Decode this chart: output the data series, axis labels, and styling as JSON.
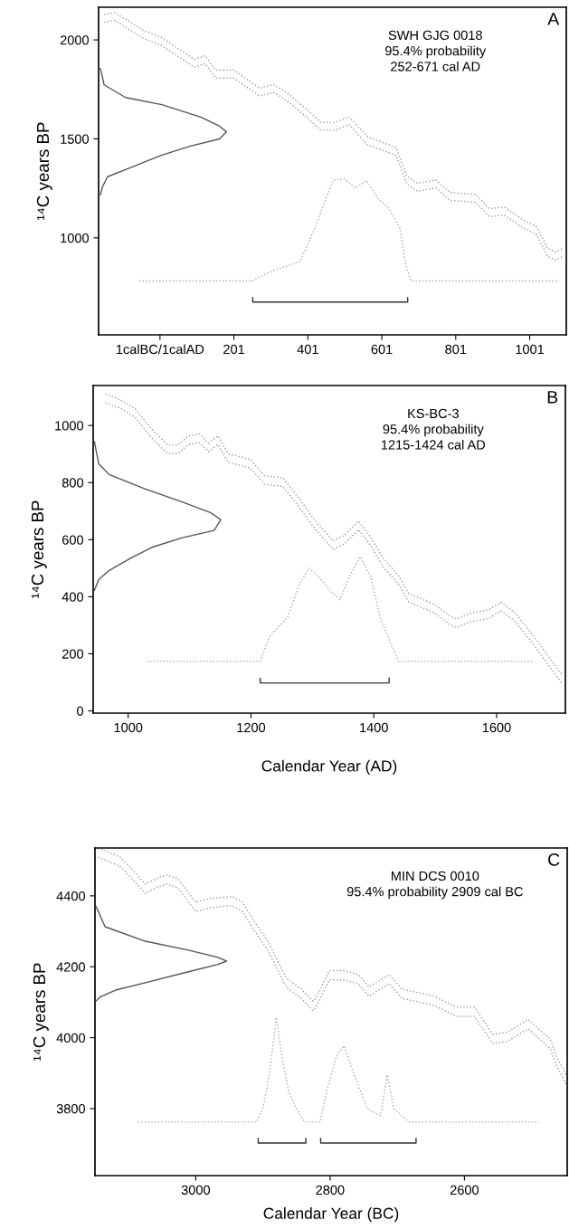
{
  "chart_data": [
    {
      "type": "line",
      "ylabel": "¹⁴C years BP",
      "annotations": [
        "A",
        "SWH GJG 0018\n95.4% probability\n252-671 cal AD"
      ],
      "xlim": [
        -165,
        1100
      ],
      "ylim": [
        510,
        2165
      ],
      "xticks": [
        {
          "value": 1,
          "label": "1calBC/1calAD"
        },
        201,
        401,
        601,
        801,
        1001
      ],
      "yticks": [
        1000,
        1500,
        2000
      ],
      "grid": false,
      "series": [
        {
          "color": "#9a9a9a",
          "line_style": "dotted",
          "x": [
            -150,
            -121,
            -43,
            6,
            94,
            123,
            152,
            201,
            270,
            308,
            347,
            405,
            435,
            474,
            513,
            562,
            640,
            669,
            698,
            747,
            786,
            854,
            893,
            932,
            981,
            1020,
            1049,
            1069,
            1093
          ],
          "values": [
            2129,
            2138,
            2047,
            2011,
            1902,
            1920,
            1847,
            1847,
            1756,
            1775,
            1729,
            1638,
            1584,
            1584,
            1611,
            1511,
            1456,
            1311,
            1275,
            1293,
            1229,
            1220,
            1147,
            1156,
            1093,
            1056,
            947,
            929,
            947
          ]
        },
        {
          "color": "#9a9a9a",
          "line_style": "dotted",
          "x": [
            -150,
            -121,
            -43,
            6,
            94,
            123,
            152,
            201,
            270,
            308,
            347,
            405,
            435,
            474,
            513,
            562,
            640,
            669,
            698,
            747,
            786,
            854,
            893,
            932,
            981,
            1020,
            1049,
            1069,
            1093
          ],
          "values": [
            2089,
            2098,
            2007,
            1971,
            1862,
            1880,
            1807,
            1807,
            1716,
            1735,
            1689,
            1598,
            1544,
            1544,
            1571,
            1471,
            1416,
            1271,
            1235,
            1253,
            1189,
            1180,
            1107,
            1116,
            1053,
            1016,
            907,
            889,
            907
          ]
        },
        {
          "color": "#555555",
          "line_style": "solid",
          "x": [
            -160,
            -150,
            -92,
            6,
            113,
            162,
            181,
            162,
            84,
            6,
            -92,
            -141,
            -155,
            -160
          ],
          "values": [
            1855,
            1773,
            1709,
            1673,
            1609,
            1564,
            1536,
            1500,
            1464,
            1418,
            1345,
            1309,
            1255,
            1218
          ]
        },
        {
          "color": "#a8a8a8",
          "line_style": "dotted",
          "x": [
            -55,
            250,
            300,
            380,
            420,
            450,
            470,
            500,
            530,
            560,
            590,
            620,
            650,
            665,
            680,
            1080
          ],
          "values": [
            782,
            782,
            830,
            880,
            1050,
            1200,
            1290,
            1300,
            1250,
            1290,
            1200,
            1150,
            1050,
            870,
            782,
            782
          ]
        },
        {
          "color": "#333333",
          "line_style": "solid",
          "x": [
            252,
            252,
            671,
            671
          ],
          "values": [
            698,
            676,
            676,
            698
          ]
        }
      ]
    },
    {
      "type": "line",
      "xlabel": "Calendar Year (AD)",
      "ylabel": "¹⁴C years BP",
      "annotations": [
        "B",
        "KS-BC-3\n95.4% probability\n1215-1424 cal AD"
      ],
      "xlim": [
        943,
        1712
      ],
      "ylim": [
        -8,
        1140
      ],
      "xticks": [
        1000,
        1200,
        1400,
        1600
      ],
      "yticks": [
        0,
        200,
        400,
        600,
        800,
        1000
      ],
      "grid": false,
      "series": [
        {
          "color": "#9a9a9a",
          "line_style": "dotted",
          "x": [
            963,
            987,
            1011,
            1040,
            1064,
            1081,
            1099,
            1116,
            1131,
            1146,
            1163,
            1199,
            1222,
            1252,
            1275,
            1305,
            1334,
            1352,
            1375,
            1393,
            1416,
            1440,
            1457,
            1499,
            1522,
            1534,
            1557,
            1587,
            1607,
            1628,
            1657,
            1687,
            1707
          ],
          "values": [
            1110,
            1091,
            1059,
            983,
            932,
            932,
            964,
            970,
            938,
            964,
            901,
            881,
            824,
            816,
            754,
            665,
            596,
            615,
            665,
            615,
            532,
            475,
            411,
            373,
            335,
            322,
            342,
            354,
            380,
            348,
            272,
            183,
            125
          ]
        },
        {
          "color": "#9a9a9a",
          "line_style": "dotted",
          "x": [
            963,
            987,
            1011,
            1040,
            1064,
            1081,
            1099,
            1116,
            1131,
            1146,
            1163,
            1199,
            1222,
            1252,
            1275,
            1305,
            1334,
            1352,
            1375,
            1393,
            1416,
            1440,
            1457,
            1499,
            1522,
            1534,
            1557,
            1587,
            1607,
            1628,
            1657,
            1687,
            1707
          ],
          "values": [
            1080,
            1061,
            1029,
            953,
            902,
            902,
            934,
            940,
            908,
            934,
            871,
            851,
            794,
            786,
            724,
            635,
            566,
            585,
            635,
            585,
            502,
            445,
            381,
            343,
            305,
            292,
            312,
            324,
            350,
            318,
            242,
            153,
            95
          ]
        },
        {
          "color": "#555555",
          "line_style": "solid",
          "x": [
            945,
            952,
            969,
            1028,
            1087,
            1134,
            1151,
            1140,
            1087,
            1040,
            1005,
            969,
            952,
            945
          ],
          "values": [
            943,
            866,
            828,
            777,
            733,
            695,
            670,
            632,
            606,
            574,
            536,
            492,
            460,
            422
          ]
        },
        {
          "color": "#a8a8a8",
          "line_style": "dotted",
          "x": [
            1030,
            1215,
            1230,
            1260,
            1280,
            1295,
            1310,
            1330,
            1345,
            1360,
            1378,
            1395,
            1410,
            1425,
            1440,
            1660
          ],
          "values": [
            174,
            174,
            260,
            330,
            450,
            500,
            470,
            420,
            390,
            470,
            540,
            470,
            330,
            250,
            174,
            174
          ]
        },
        {
          "color": "#333333",
          "line_style": "solid",
          "x": [
            1215,
            1215,
            1425,
            1425
          ],
          "values": [
            114,
            98,
            98,
            114
          ]
        }
      ]
    },
    {
      "type": "line",
      "xlabel": "Calendar Year (BC)",
      "ylabel": "¹⁴C years BP",
      "annotations": [
        "C",
        "MIN DCS 0010\n95.4% probability 2909 cal BC"
      ],
      "xlim": [
        3150,
        2447
      ],
      "ylim": [
        3611,
        4535
      ],
      "xticks": [
        3000,
        2800,
        2600
      ],
      "yticks": [
        3800,
        4000,
        4200,
        4400
      ],
      "grid": false,
      "series": [
        {
          "color": "#9a9a9a",
          "line_style": "dotted",
          "x": [
            3145,
            3113,
            3097,
            3075,
            3059,
            3043,
            3027,
            3000,
            2978,
            2946,
            2930,
            2914,
            2892,
            2865,
            2843,
            2825,
            2817,
            2801,
            2779,
            2758,
            2742,
            2725,
            2712,
            2693,
            2645,
            2612,
            2585,
            2558,
            2537,
            2505,
            2472,
            2462,
            2448
          ],
          "values": [
            4535,
            4510,
            4479,
            4433,
            4449,
            4459,
            4449,
            4382,
            4393,
            4398,
            4382,
            4331,
            4270,
            4168,
            4137,
            4102,
            4127,
            4189,
            4189,
            4178,
            4143,
            4163,
            4178,
            4137,
            4117,
            4086,
            4086,
            4010,
            4015,
            4051,
            3995,
            3944,
            3893
          ]
        },
        {
          "color": "#9a9a9a",
          "line_style": "dotted",
          "x": [
            3145,
            3113,
            3097,
            3075,
            3059,
            3043,
            3027,
            3000,
            2978,
            2946,
            2930,
            2914,
            2892,
            2865,
            2843,
            2825,
            2817,
            2801,
            2779,
            2758,
            2742,
            2725,
            2712,
            2693,
            2645,
            2612,
            2585,
            2558,
            2537,
            2505,
            2472,
            2462,
            2448
          ],
          "values": [
            4509,
            4484,
            4453,
            4407,
            4423,
            4433,
            4423,
            4356,
            4367,
            4372,
            4356,
            4305,
            4244,
            4142,
            4111,
            4076,
            4101,
            4163,
            4163,
            4152,
            4117,
            4137,
            4152,
            4111,
            4091,
            4060,
            4060,
            3984,
            3989,
            4025,
            3969,
            3918,
            3867
          ]
        },
        {
          "color": "#555555",
          "line_style": "solid",
          "x": [
            3148,
            3135,
            3075,
            3011,
            2968,
            2954,
            2968,
            3011,
            3075,
            3118,
            3143,
            3148
          ],
          "values": [
            4369,
            4313,
            4272,
            4247,
            4227,
            4216,
            4206,
            4186,
            4155,
            4135,
            4114,
            4104
          ]
        },
        {
          "color": "#a8a8a8",
          "line_style": "dotted",
          "x": [
            3086,
            2910,
            2900,
            2890,
            2880,
            2872,
            2862,
            2850,
            2838,
            2815,
            2805,
            2790,
            2779,
            2765,
            2745,
            2725,
            2715,
            2705,
            2682,
            2489
          ],
          "values": [
            3762,
            3762,
            3800,
            3900,
            4058,
            3950,
            3850,
            3800,
            3762,
            3762,
            3850,
            3950,
            3977,
            3900,
            3800,
            3780,
            3895,
            3800,
            3762,
            3762
          ]
        },
        {
          "color": "#333333",
          "line_style": "solid",
          "x": [
            2907,
            2907,
            2836,
            2836,
            null,
            2814,
            2814,
            2672,
            2672
          ],
          "values": [
            3716,
            3703,
            3703,
            3716,
            null,
            3716,
            3703,
            3703,
            3716
          ]
        }
      ]
    }
  ]
}
